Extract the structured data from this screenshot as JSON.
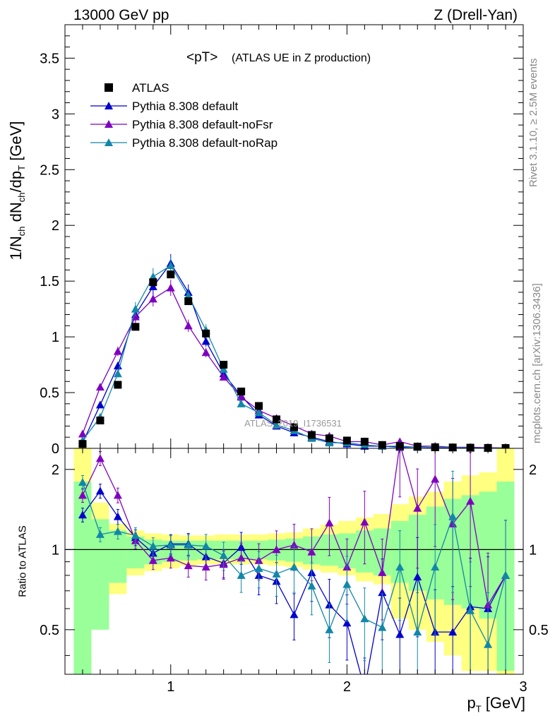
{
  "header": {
    "energy": "13000 GeV pp",
    "process": "Z (Drell-Yan)"
  },
  "side_labels": {
    "rivet": "Rivet 3.1.10, ≥ 2.5M events",
    "mcplots": "mcplots.cern.ch [arXiv:1306.3436]"
  },
  "watermark": "ATLAS_2019_I1736531",
  "chart_data": [
    {
      "type": "scatter",
      "title": "<pT> (ATLAS UE in Z production)",
      "title_main": "<pT>",
      "title_sub": "(ATLAS UE in Z production)",
      "ylabel": "1/N_ch dN_ch/dp_T [GeV]",
      "ylim": [
        0,
        3.8
      ],
      "xlim": [
        0.4,
        3.0
      ],
      "yticks": [
        "0",
        "0.5",
        "1",
        "1.5",
        "2",
        "2.5",
        "3",
        "3.5"
      ],
      "ytick_values": [
        0,
        0.5,
        1,
        1.5,
        2,
        2.5,
        3,
        3.5
      ],
      "legend_position": "top-left",
      "x": [
        0.5,
        0.6,
        0.7,
        0.8,
        0.9,
        1.0,
        1.1,
        1.2,
        1.3,
        1.4,
        1.5,
        1.6,
        1.7,
        1.8,
        1.9,
        2.0,
        2.1,
        2.2,
        2.3,
        2.4,
        2.5,
        2.6,
        2.7,
        2.8,
        2.9
      ],
      "series": [
        {
          "name": "ATLAS",
          "color": "#000000",
          "marker": "square",
          "values": [
            0.04,
            0.25,
            0.57,
            1.09,
            1.49,
            1.56,
            1.32,
            1.03,
            0.75,
            0.51,
            0.38,
            0.26,
            0.19,
            0.12,
            0.09,
            0.07,
            0.06,
            0.03,
            0.02,
            0.015,
            0.01,
            0.008,
            0.006,
            0.004,
            0.003
          ]
        },
        {
          "name": "Pythia 8.308 default",
          "color": "#0000cc",
          "marker": "triangle",
          "values": [
            0.05,
            0.39,
            0.74,
            1.2,
            1.45,
            1.66,
            1.4,
            0.96,
            0.67,
            0.47,
            0.3,
            0.2,
            0.14,
            0.1,
            0.06,
            0.04,
            0.02,
            0.02,
            0.01,
            0.012,
            0.008,
            0.006,
            0.004,
            0.003,
            0.002
          ]
        },
        {
          "name": "Pythia 8.308 default-noFsr",
          "color": "#7f00bf",
          "marker": "triangle",
          "values": [
            0.13,
            0.55,
            0.87,
            1.18,
            1.34,
            1.44,
            1.1,
            0.86,
            0.64,
            0.46,
            0.34,
            0.27,
            0.2,
            0.13,
            0.11,
            0.06,
            0.06,
            0.03,
            0.06,
            0.02,
            0.02,
            0.01,
            0.01,
            0.006,
            0.004
          ]
        },
        {
          "name": "Pythia 8.308 default-noRap",
          "color": "#1287a8",
          "marker": "triangle",
          "values": [
            0.07,
            0.28,
            0.67,
            1.25,
            1.54,
            1.64,
            1.37,
            1.06,
            0.71,
            0.4,
            0.32,
            0.21,
            0.16,
            0.09,
            0.05,
            0.05,
            0.03,
            0.02,
            0.02,
            0.01,
            0.008,
            0.008,
            0.004,
            0.002,
            0.002
          ]
        }
      ]
    },
    {
      "type": "scatter",
      "ylabel": "Ratio to ATLAS",
      "xlabel": "p_T [GeV]",
      "ylim": [
        0.34,
        2.4
      ],
      "xlim": [
        0.4,
        3.0
      ],
      "yticks": [
        "0.5",
        "1",
        "2"
      ],
      "ytick_values": [
        0.5,
        1,
        2
      ],
      "xticks": [
        "1",
        "2",
        "3"
      ],
      "xtick_values": [
        1,
        2,
        3
      ],
      "x": [
        0.5,
        0.6,
        0.7,
        0.8,
        0.9,
        1.0,
        1.1,
        1.2,
        1.3,
        1.4,
        1.5,
        1.6,
        1.7,
        1.8,
        1.9,
        2.0,
        2.1,
        2.2,
        2.3,
        2.4,
        2.5,
        2.6,
        2.7,
        2.8,
        2.9
      ],
      "bands": {
        "edges": [
          0.45,
          0.55,
          0.65,
          0.75,
          0.85,
          0.95,
          1.05,
          1.15,
          1.25,
          1.35,
          1.45,
          1.55,
          1.65,
          1.75,
          1.85,
          1.95,
          2.05,
          2.15,
          2.25,
          2.35,
          2.45,
          2.55,
          2.65,
          2.75,
          2.85,
          2.95
        ],
        "stat_lo": [
          0.3,
          0.5,
          0.75,
          0.85,
          0.88,
          0.9,
          0.91,
          0.92,
          0.92,
          0.92,
          0.92,
          0.91,
          0.9,
          0.88,
          0.87,
          0.85,
          0.82,
          0.8,
          0.75,
          0.7,
          0.65,
          0.62,
          0.6,
          0.55,
          0.35
        ],
        "stat_hi": [
          1.8,
          1.3,
          1.18,
          1.12,
          1.09,
          1.08,
          1.08,
          1.08,
          1.08,
          1.08,
          1.08,
          1.09,
          1.1,
          1.12,
          1.14,
          1.15,
          1.18,
          1.2,
          1.28,
          1.35,
          1.45,
          1.55,
          1.6,
          1.65,
          1.8
        ],
        "total_lo": [
          0.3,
          0.6,
          0.68,
          0.8,
          0.83,
          0.85,
          0.87,
          0.88,
          0.88,
          0.88,
          0.88,
          0.87,
          0.86,
          0.84,
          0.82,
          0.8,
          0.76,
          0.74,
          0.55,
          0.5,
          0.45,
          0.4,
          0.35,
          0.35,
          0.3
        ],
        "total_hi": [
          2.4,
          1.5,
          1.25,
          1.18,
          1.15,
          1.14,
          1.13,
          1.13,
          1.14,
          1.14,
          1.14,
          1.15,
          1.16,
          1.2,
          1.24,
          1.28,
          1.32,
          1.36,
          1.48,
          1.58,
          1.65,
          1.8,
          1.9,
          1.95,
          2.4
        ],
        "stat_color": "#99ff99",
        "total_color": "#ffff80"
      },
      "series": [
        {
          "name": "Pythia 8.308 default",
          "color": "#0000cc",
          "values": [
            1.35,
            1.66,
            1.33,
            1.11,
            0.97,
            1.05,
            1.05,
            0.94,
            0.89,
            1.02,
            0.8,
            0.76,
            0.57,
            0.82,
            0.62,
            0.53,
            0.3,
            0.69,
            0.48,
            0.79,
            0.49,
            0.49,
            0.61,
            0.6,
            0.8
          ]
        },
        {
          "name": "Pythia 8.308 default-noFsr",
          "color": "#7f00bf",
          "values": [
            1.6,
            2.2,
            1.6,
            1.08,
            0.91,
            0.93,
            0.87,
            0.86,
            0.88,
            0.93,
            0.91,
            1.0,
            1.04,
            0.98,
            1.26,
            0.86,
            1.27,
            0.82,
            2.5,
            1.43,
            1.84,
            1.25,
            1.52,
            0.62,
            0.8
          ]
        },
        {
          "name": "Pythia 8.308 default-noRap",
          "color": "#1287a8",
          "values": [
            1.79,
            1.14,
            1.17,
            1.13,
            1.03,
            1.04,
            1.04,
            1.03,
            0.95,
            0.8,
            0.85,
            0.81,
            0.86,
            0.73,
            0.5,
            0.74,
            0.55,
            0.51,
            0.86,
            0.49,
            0.86,
            1.33,
            0.59,
            0.44,
            0.8
          ]
        }
      ]
    }
  ]
}
